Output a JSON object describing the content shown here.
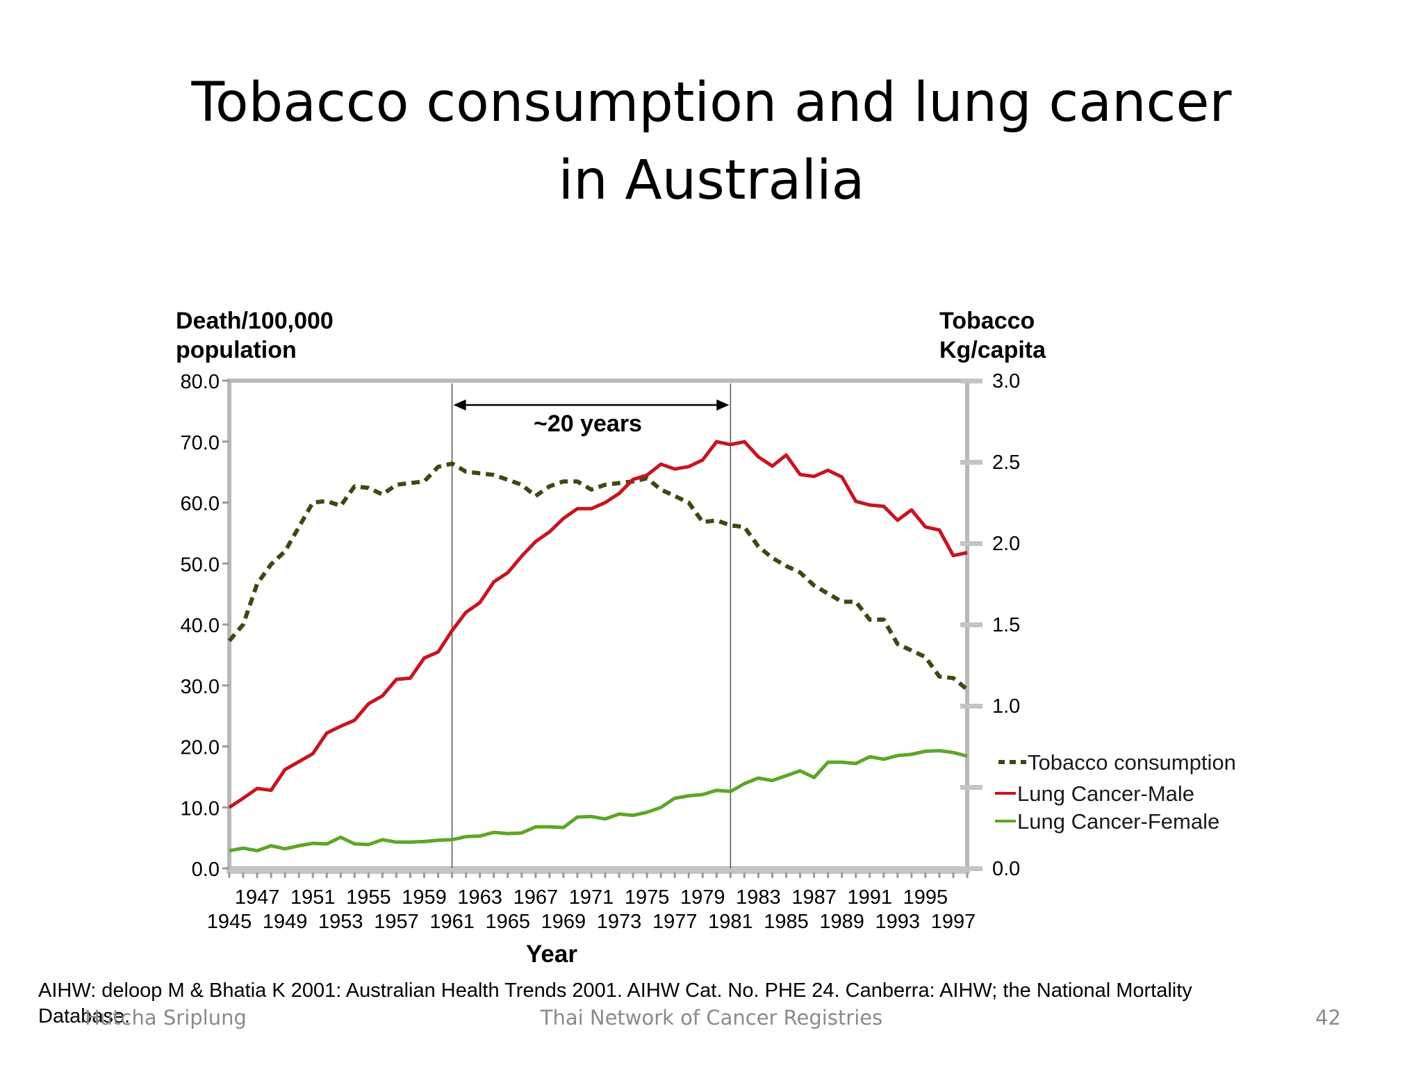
{
  "slide": {
    "title_line1": "Tobacco consumption and lung cancer",
    "title_line2": "in Australia",
    "citation_line1": "AIHW: deloop M & Bhatia K 2001: Australian Health Trends 2001. AIHW Cat. No. PHE 24. Canberra: AIHW; the National Mortality",
    "citation_line2": "Database.",
    "footer_left": "Hutcha Sriplung",
    "footer_center": "Thai Network of Cancer Registries",
    "page_number": "42"
  },
  "chart_data": {
    "type": "line",
    "title": "",
    "xlabel": "Year",
    "ylabel_left_line1": "Death/100,000",
    "ylabel_left_line2": "population",
    "ylabel_right_line1": "Tobacco",
    "ylabel_right_line2": "Kg/capita",
    "ylim_left": [
      0,
      80
    ],
    "ylim_right": [
      0,
      3
    ],
    "yticks_left": [
      "0.0",
      "10.0",
      "20.0",
      "30.0",
      "40.0",
      "50.0",
      "60.0",
      "70.0",
      "80.0"
    ],
    "yticks_right": [
      "0.0",
      "1.0",
      "1.5",
      "2.0",
      "2.5",
      "3.0"
    ],
    "yticks_right_values": [
      0,
      1,
      1.5,
      2,
      2.5,
      3
    ],
    "xticks_upper": [
      "1947",
      "1951",
      "1955",
      "1959",
      "1963",
      "1967",
      "1971",
      "1975",
      "1979",
      "1983",
      "1987",
      "1991",
      "1995"
    ],
    "xticks_lower": [
      "1945",
      "1949",
      "1953",
      "1957",
      "1961",
      "1965",
      "1969",
      "1973",
      "1977",
      "1981",
      "1985",
      "1989",
      "1993",
      "1997"
    ],
    "x": [
      1945,
      1946,
      1947,
      1948,
      1949,
      1950,
      1951,
      1952,
      1953,
      1954,
      1955,
      1956,
      1957,
      1958,
      1959,
      1960,
      1961,
      1962,
      1963,
      1964,
      1965,
      1966,
      1967,
      1968,
      1969,
      1970,
      1971,
      1972,
      1973,
      1974,
      1975,
      1976,
      1977,
      1978,
      1979,
      1980,
      1981,
      1982,
      1983,
      1984,
      1985,
      1986,
      1987,
      1988,
      1989,
      1990,
      1991,
      1992,
      1993,
      1994,
      1995,
      1996,
      1997,
      1998
    ],
    "series": [
      {
        "name": "Tobacco consumption",
        "axis": "right",
        "color": "#3b4a12",
        "style": "dashed",
        "values": [
          1.4,
          1.5,
          1.75,
          1.87,
          1.95,
          2.1,
          2.25,
          2.26,
          2.23,
          2.35,
          2.34,
          2.3,
          2.36,
          2.37,
          2.38,
          2.47,
          2.49,
          2.44,
          2.43,
          2.42,
          2.39,
          2.36,
          2.29,
          2.35,
          2.38,
          2.38,
          2.33,
          2.36,
          2.37,
          2.38,
          2.4,
          2.33,
          2.29,
          2.25,
          2.13,
          2.14,
          2.11,
          2.1,
          1.98,
          1.91,
          1.86,
          1.82,
          1.74,
          1.69,
          1.64,
          1.64,
          1.53,
          1.53,
          1.38,
          1.34,
          1.3,
          1.18,
          1.17,
          1.1
        ]
      },
      {
        "name": "Lung Cancer-Male",
        "axis": "left",
        "color": "#c8141e",
        "style": "solid",
        "values": [
          10,
          11.5,
          13.1,
          12.8,
          16.2,
          17.5,
          18.8,
          22.2,
          23.3,
          24.3,
          27,
          28.3,
          31,
          31.2,
          34.5,
          35.5,
          39,
          42,
          43.6,
          47,
          48.5,
          51.2,
          53.6,
          55.2,
          57.4,
          59,
          59,
          60,
          61.5,
          63.8,
          64.5,
          66.3,
          65.5,
          65.9,
          67,
          70,
          69.5,
          70,
          67.5,
          66,
          67.8,
          64.6,
          64.3,
          65.3,
          64.2,
          60.2,
          59.6,
          59.4,
          57.1,
          58.8,
          56,
          55.5,
          51.3,
          51.8
        ]
      },
      {
        "name": "Lung Cancer-Female",
        "axis": "left",
        "color": "#5ea626",
        "style": "solid",
        "values": [
          2.9,
          3.3,
          2.9,
          3.7,
          3.2,
          3.7,
          4.1,
          4,
          5.1,
          4,
          3.9,
          4.7,
          4.3,
          4.3,
          4.4,
          4.6,
          4.7,
          5.2,
          5.3,
          5.9,
          5.7,
          5.8,
          6.8,
          6.8,
          6.7,
          8.4,
          8.5,
          8.1,
          8.9,
          8.7,
          9.2,
          10,
          11.5,
          11.9,
          12.1,
          12.8,
          12.6,
          13.9,
          14.8,
          14.4,
          15.2,
          16,
          14.9,
          17.4,
          17.4,
          17.2,
          18.3,
          17.9,
          18.5,
          18.7,
          19.2,
          19.3,
          19,
          18.4
        ]
      }
    ],
    "annotation": {
      "text": "~20 years",
      "from_year": 1961,
      "to_year": 1981
    },
    "legend_position": "right",
    "grid": false
  }
}
